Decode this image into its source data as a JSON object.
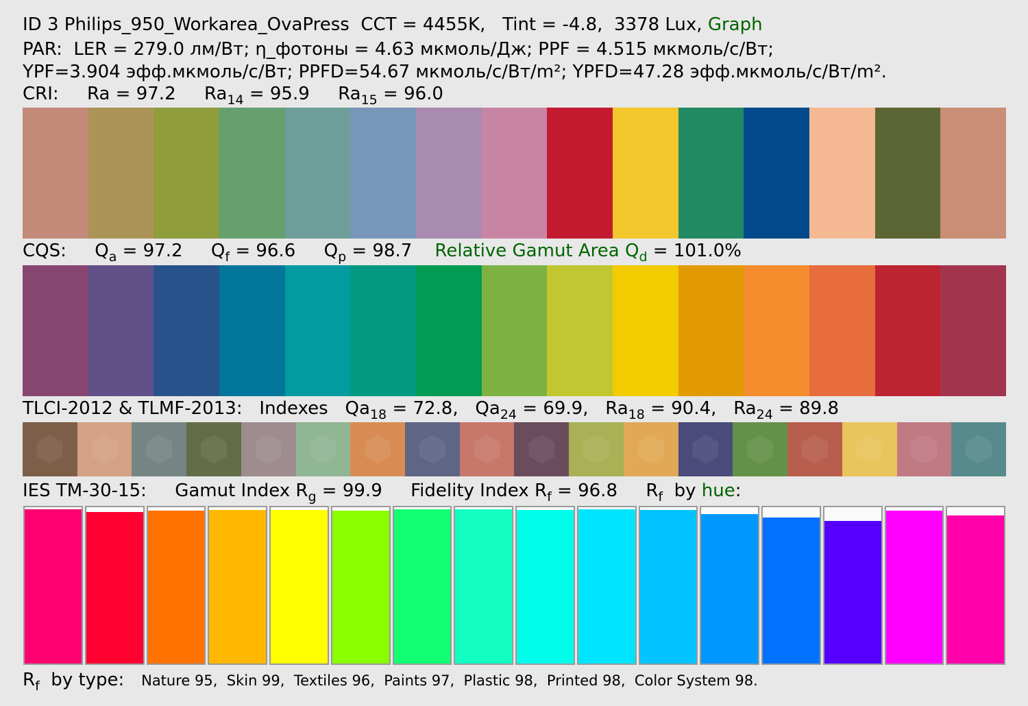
{
  "header": {
    "line1_main": "ID 3 Philips_950_Workarea_OvaPress  CCT = 4455K,   Tint = -4.8,  3378 Lux,",
    "line1_link": "Graph",
    "line2": "PAR:  LER = 279.0 лм/Вт; η_фотоны = 4.63 мкмоль/Дж; PPF = 4.515 мкмоль/с/Вт;",
    "line3": "YPF=3.904 эфф.мкмоль/с/Вт; PPFD=54.67 мкмоль/с/Вт/m²; YPFD=47.28 эфф.мкмоль/с/Вт/m²."
  },
  "cri": {
    "label": "CRI:",
    "ra": "Ra = 97.2",
    "ra14_pre": "Ra",
    "ra14_sub": "14",
    "ra14_val": " = 95.9",
    "ra15_pre": "Ra",
    "ra15_sub": "15",
    "ra15_val": " = 96.0",
    "swatches": [
      "#c48a79",
      "#ac9459",
      "#8f9d3d",
      "#65a06e",
      "#6e9e9a",
      "#7896b8",
      "#a98ab1",
      "#c885a3",
      "#c41a2f",
      "#f1c72d",
      "#228a62",
      "#014a8b",
      "#f4b992",
      "#5c6534",
      "#c98e76"
    ]
  },
  "cqs": {
    "label": "CQS:",
    "qa_pre": "Q",
    "qa_sub": "a",
    "qa_val": " = 97.2",
    "qf_pre": "Q",
    "qf_sub": "f",
    "qf_val": " = 96.6",
    "qp_pre": "Q",
    "qp_sub": "p",
    "qp_val": " = 98.7",
    "gamut_text": "Relative Gamut Area Q",
    "gamut_sub": "d",
    "gamut_val": " = 101.0%",
    "swatches": [
      "#874672",
      "#625188",
      "#27528a",
      "#02769a",
      "#029b9f",
      "#019982",
      "#019b53",
      "#7db243",
      "#c1c631",
      "#f2cb00",
      "#e29a02",
      "#f58d2f",
      "#e86d3c",
      "#bd2431",
      "#a3344e"
    ]
  },
  "tlci": {
    "label": "TLCI-2012 & TLMF-2013:   Indexes",
    "qa18_pre": "Qa",
    "qa18_sub": "18",
    "qa18_val": " = 72.8,",
    "qa24_pre": "Qa",
    "qa24_sub": "24",
    "qa24_val": " = 69.9,",
    "ra18_pre": "Ra",
    "ra18_sub": "18",
    "ra18_val": " = 90.4,",
    "ra24_pre": "Ra",
    "ra24_sub": "24",
    "ra24_val": " = 89.8",
    "swatches": [
      "#7d5e48",
      "#d4a184",
      "#768584",
      "#626d47",
      "#9e8c8f",
      "#90b693",
      "#d88c53",
      "#5f6585",
      "#c8786a",
      "#6a4c5c",
      "#a8b155",
      "#e1a955",
      "#4a4b7a",
      "#649148",
      "#b85e4d",
      "#eac45c",
      "#c07a84",
      "#578a8c"
    ]
  },
  "tm30": {
    "label": "IES TM-30-15:",
    "rg_pre": "Gamut Index R",
    "rg_sub": "g",
    "rg_val": " = 99.9",
    "rf_pre": "Fidelity Index R",
    "rf_sub": "f",
    "rf_val": " = 96.8",
    "byhue_pre": "R",
    "byhue_sub": "f",
    "byhue_mid": "  by ",
    "byhue_word": "hue",
    "byhue_end": ":",
    "bars": [
      {
        "color": "#ff0070",
        "level": 0.988
      },
      {
        "color": "#ff0031",
        "level": 0.97
      },
      {
        "color": "#ff7100",
        "level": 0.979
      },
      {
        "color": "#ffb700",
        "level": 0.984
      },
      {
        "color": "#ffff00",
        "level": 0.984
      },
      {
        "color": "#89ff00",
        "level": 0.979
      },
      {
        "color": "#12ff73",
        "level": 0.988
      },
      {
        "color": "#12ffc1",
        "level": 0.988
      },
      {
        "color": "#00ffea",
        "level": 0.984
      },
      {
        "color": "#00e5ff",
        "level": 0.988
      },
      {
        "color": "#00c3ff",
        "level": 0.984
      },
      {
        "color": "#0098ff",
        "level": 0.956
      },
      {
        "color": "#0072ff",
        "level": 0.933
      },
      {
        "color": "#5500ff",
        "level": 0.914
      },
      {
        "color": "#ff00ff",
        "level": 0.979
      },
      {
        "color": "#ff00a9",
        "level": 0.949
      }
    ]
  },
  "bytype": {
    "pre": "R",
    "sub": "f",
    "mid": "  by type:",
    "values": "Nature 95,  Skin 99,  Textiles 96,  Paints 97,  Plastic 98,  Printed 98,  Color System 98."
  }
}
